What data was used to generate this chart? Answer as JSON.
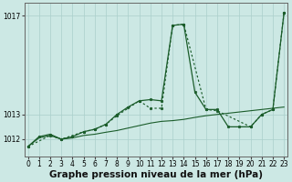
{
  "background_color": "#cce8e4",
  "grid_color": "#aacfcb",
  "line_color": "#1a5c2a",
  "xlabel": "Graphe pression niveau de la mer (hPa)",
  "xlabel_fontsize": 7.5,
  "xticks": [
    0,
    1,
    2,
    3,
    4,
    5,
    6,
    7,
    8,
    9,
    10,
    11,
    12,
    13,
    14,
    15,
    16,
    17,
    18,
    19,
    20,
    21,
    22,
    23
  ],
  "ytick_labels": [
    "1012",
    "1013",
    "1017"
  ],
  "ytick_values": [
    1012,
    1013,
    1017
  ],
  "ylim": [
    1011.3,
    1017.5
  ],
  "xlim": [
    -0.3,
    23.3
  ],
  "series1_y": [
    1011.7,
    1012.05,
    1012.15,
    1012.0,
    1012.05,
    1012.15,
    1012.2,
    1012.28,
    1012.35,
    1012.45,
    1012.55,
    1012.65,
    1012.72,
    1012.75,
    1012.8,
    1012.88,
    1012.95,
    1013.0,
    1013.05,
    1013.1,
    1013.15,
    1013.2,
    1013.25,
    1013.3
  ],
  "series2_y": [
    1011.7,
    1012.1,
    1012.2,
    1012.0,
    1012.1,
    1012.3,
    1012.4,
    1012.6,
    1013.0,
    1013.3,
    1013.55,
    1013.6,
    1013.55,
    1016.6,
    1016.65,
    1013.9,
    1013.2,
    1013.2,
    1012.5,
    1012.5,
    1012.5,
    1013.0,
    1013.2,
    1017.1
  ],
  "series3_x": [
    0,
    2,
    3,
    5,
    6,
    7,
    8,
    10,
    11,
    12,
    13,
    14,
    16,
    17,
    20,
    21,
    22,
    23
  ],
  "series3_y": [
    1011.7,
    1012.15,
    1012.0,
    1012.3,
    1012.4,
    1012.6,
    1012.95,
    1013.55,
    1013.25,
    1013.25,
    1016.6,
    1016.65,
    1013.2,
    1013.15,
    1012.5,
    1013.0,
    1013.2,
    1017.1
  ]
}
